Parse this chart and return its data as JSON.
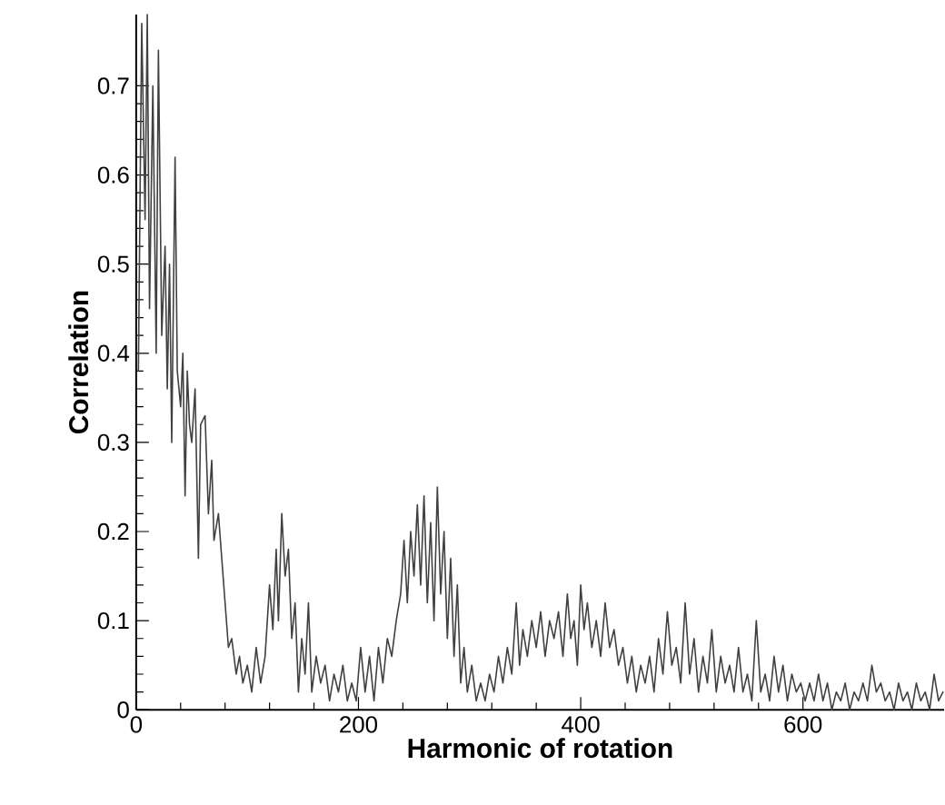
{
  "chart_data": {
    "type": "line",
    "xlabel": "Harmonic of rotation",
    "ylabel": "Correlation",
    "color": "#404040",
    "xlim": [
      0,
      727
    ],
    "ylim": [
      0,
      0.78
    ],
    "xticks": [
      0,
      200,
      400,
      600
    ],
    "yticks": [
      0,
      0.1,
      0.2,
      0.3,
      0.4,
      0.5,
      0.6,
      0.7
    ],
    "x": [
      2,
      5,
      8,
      10,
      12,
      15,
      18,
      20,
      23,
      26,
      28,
      30,
      32,
      35,
      37,
      40,
      42,
      44,
      46,
      48,
      50,
      53,
      56,
      58,
      62,
      65,
      68,
      70,
      74,
      77,
      80,
      83,
      86,
      90,
      93,
      96,
      100,
      104,
      108,
      112,
      116,
      120,
      123,
      126,
      128,
      131,
      134,
      137,
      140,
      143,
      146,
      149,
      152,
      155,
      158,
      162,
      166,
      170,
      174,
      178,
      182,
      186,
      190,
      194,
      198,
      202,
      206,
      210,
      214,
      218,
      222,
      226,
      230,
      234,
      238,
      241,
      244,
      247,
      250,
      253,
      256,
      259,
      262,
      265,
      268,
      271,
      274,
      277,
      280,
      283,
      286,
      289,
      292,
      295,
      298,
      302,
      306,
      310,
      314,
      318,
      322,
      326,
      330,
      334,
      338,
      342,
      345,
      348,
      352,
      356,
      360,
      364,
      368,
      372,
      376,
      380,
      384,
      388,
      391,
      394,
      397,
      400,
      403,
      406,
      410,
      414,
      418,
      422,
      426,
      430,
      434,
      438,
      442,
      446,
      450,
      454,
      458,
      462,
      466,
      470,
      474,
      478,
      482,
      486,
      490,
      494,
      498,
      502,
      506,
      510,
      514,
      518,
      522,
      526,
      530,
      534,
      538,
      542,
      546,
      550,
      554,
      558,
      562,
      566,
      570,
      574,
      578,
      582,
      586,
      590,
      594,
      598,
      602,
      606,
      610,
      614,
      618,
      622,
      626,
      630,
      634,
      638,
      642,
      646,
      650,
      654,
      658,
      662,
      666,
      670,
      674,
      678,
      682,
      686,
      690,
      694,
      698,
      702,
      706,
      710,
      714,
      718,
      722,
      726
    ],
    "values": [
      0.38,
      0.77,
      0.55,
      0.78,
      0.45,
      0.7,
      0.4,
      0.74,
      0.42,
      0.52,
      0.36,
      0.5,
      0.3,
      0.62,
      0.38,
      0.34,
      0.4,
      0.24,
      0.38,
      0.32,
      0.3,
      0.36,
      0.17,
      0.32,
      0.33,
      0.22,
      0.28,
      0.19,
      0.22,
      0.17,
      0.12,
      0.07,
      0.08,
      0.04,
      0.06,
      0.03,
      0.05,
      0.02,
      0.07,
      0.03,
      0.06,
      0.14,
      0.09,
      0.18,
      0.1,
      0.22,
      0.15,
      0.18,
      0.08,
      0.12,
      0.02,
      0.08,
      0.04,
      0.12,
      0.02,
      0.06,
      0.03,
      0.05,
      0.01,
      0.04,
      0.02,
      0.05,
      0.01,
      0.03,
      0.01,
      0.07,
      0.02,
      0.06,
      0.01,
      0.07,
      0.03,
      0.08,
      0.06,
      0.1,
      0.13,
      0.19,
      0.12,
      0.2,
      0.15,
      0.23,
      0.14,
      0.24,
      0.12,
      0.21,
      0.1,
      0.25,
      0.13,
      0.2,
      0.08,
      0.17,
      0.06,
      0.14,
      0.03,
      0.07,
      0.02,
      0.05,
      0.01,
      0.03,
      0.01,
      0.04,
      0.02,
      0.06,
      0.03,
      0.07,
      0.04,
      0.12,
      0.05,
      0.09,
      0.06,
      0.1,
      0.07,
      0.11,
      0.06,
      0.1,
      0.08,
      0.11,
      0.06,
      0.13,
      0.08,
      0.1,
      0.05,
      0.14,
      0.09,
      0.12,
      0.07,
      0.1,
      0.06,
      0.12,
      0.07,
      0.09,
      0.05,
      0.07,
      0.03,
      0.06,
      0.02,
      0.05,
      0.03,
      0.06,
      0.02,
      0.08,
      0.04,
      0.11,
      0.05,
      0.07,
      0.03,
      0.12,
      0.04,
      0.08,
      0.02,
      0.06,
      0.03,
      0.09,
      0.02,
      0.06,
      0.03,
      0.05,
      0.02,
      0.07,
      0.02,
      0.04,
      0.01,
      0.1,
      0.02,
      0.04,
      0.01,
      0.06,
      0.02,
      0.05,
      0.01,
      0.04,
      0.02,
      0.03,
      0.01,
      0.03,
      0.01,
      0.04,
      0.01,
      0.03,
      0.0,
      0.02,
      0.01,
      0.03,
      0.0,
      0.02,
      0.01,
      0.03,
      0.01,
      0.05,
      0.02,
      0.03,
      0.01,
      0.02,
      0.0,
      0.03,
      0.01,
      0.02,
      0.0,
      0.03,
      0.01,
      0.02,
      0.0,
      0.04,
      0.01,
      0.02
    ]
  }
}
